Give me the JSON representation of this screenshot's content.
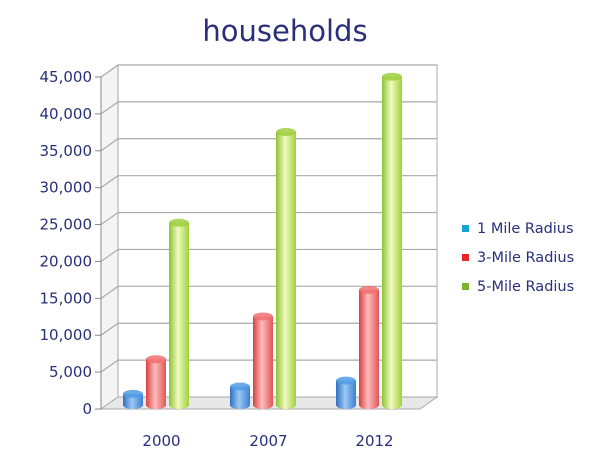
{
  "chart_data": {
    "type": "bar",
    "title": "households",
    "xlabel": "",
    "ylabel": "",
    "categories": [
      "2000",
      "2007",
      "2012"
    ],
    "series": [
      {
        "name": "1 Mile Radius",
        "values": [
          1500,
          2500,
          3300
        ]
      },
      {
        "name": "3-Mile Radius",
        "values": [
          6200,
          12000,
          15600
        ]
      },
      {
        "name": "5-Mile Radius",
        "values": [
          24700,
          37000,
          44500
        ]
      }
    ],
    "ylim": [
      0,
      45000
    ],
    "yticks": [
      "0",
      "5,000",
      "10,000",
      "15,000",
      "20,000",
      "25,000",
      "30,000",
      "35,000",
      "40,000",
      "45,000"
    ],
    "ytick_values": [
      0,
      5000,
      10000,
      15000,
      20000,
      25000,
      30000,
      35000,
      40000,
      45000
    ],
    "grid": true,
    "legend_position": "right",
    "colors": [
      "#4f9be4",
      "#f07070",
      "#9ccf3c"
    ],
    "legend_colors": [
      "#18a3d8",
      "#e8262a",
      "#7cb32f"
    ]
  }
}
